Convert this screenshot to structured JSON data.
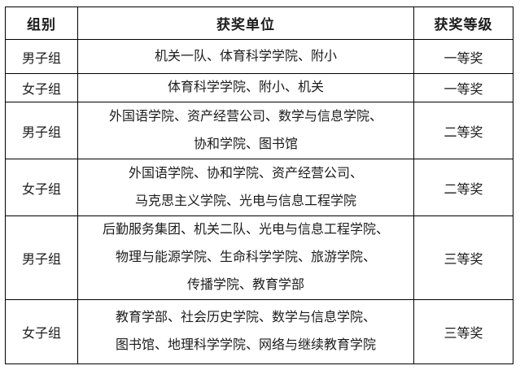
{
  "table": {
    "headers": {
      "group": "组别",
      "unit": "获奖单位",
      "level": "获奖等级"
    },
    "rows": [
      {
        "group": "男子组",
        "unit_lines": [
          "机关一队、体育科学学院、附小"
        ],
        "level": "一等奖"
      },
      {
        "group": "女子组",
        "unit_lines": [
          "体育科学学院、附小、机关"
        ],
        "level": "一等奖"
      },
      {
        "group": "男子组",
        "unit_lines": [
          "外国语学院、资产经营公司、数学与信息学院、",
          "协和学院、图书馆"
        ],
        "level": "二等奖"
      },
      {
        "group": "女子组",
        "unit_lines": [
          "外国语学院、协和学院、资产经营公司、",
          "马克思主义学院、光电与信息工程学院"
        ],
        "level": "二等奖"
      },
      {
        "group": "男子组",
        "unit_lines": [
          "后勤服务集团、机关二队、光电与信息工程学院、",
          "物理与能源学院、生命科学学院、旅游学院、",
          "传播学院、教育学部"
        ],
        "level": "三等奖"
      },
      {
        "group": "女子组",
        "unit_lines": [
          "教育学部、社会历史学院、数学与信息学院、",
          "图书馆、地理科学学院、网络与继续教育学院"
        ],
        "level": "三等奖"
      }
    ],
    "colors": {
      "border": "#000000",
      "text": "#1c1c1c",
      "background": "#ffffff"
    }
  }
}
